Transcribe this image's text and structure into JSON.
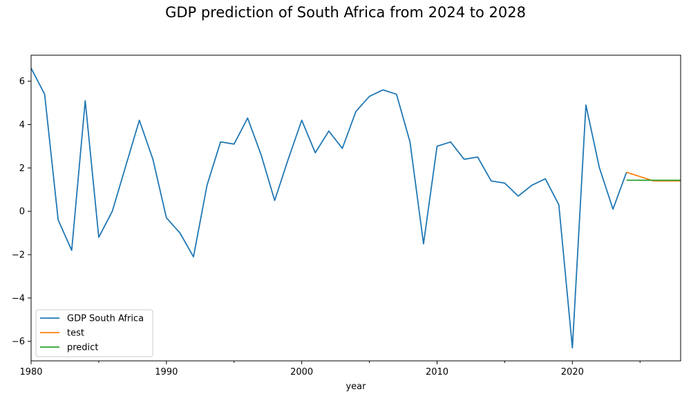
{
  "chart_data": {
    "type": "line",
    "title": "GDP prediction of South Africa from 2024 to 2028",
    "xlabel": "year",
    "ylabel": "",
    "xlim": [
      1980,
      2028
    ],
    "ylim": [
      -6.9,
      7.2
    ],
    "x_ticks": [
      1980,
      1990,
      2000,
      2010,
      2020
    ],
    "x_tick_labels": [
      "1980",
      "1990",
      "2000",
      "2010",
      "2020"
    ],
    "x_minor_ticks": [
      1985,
      1995,
      2005,
      2015,
      2025
    ],
    "y_ticks": [
      -6,
      -4,
      -2,
      0,
      2,
      4,
      6
    ],
    "y_tick_labels": [
      "−6",
      "−4",
      "−2",
      "0",
      "2",
      "4",
      "6"
    ],
    "grid": false,
    "legend_position": "lower left",
    "series": [
      {
        "name": "GDP South Africa",
        "color": "#1f77b4",
        "x": [
          1980,
          1981,
          1982,
          1983,
          1984,
          1985,
          1986,
          1987,
          1988,
          1989,
          1990,
          1991,
          1992,
          1993,
          1994,
          1995,
          1996,
          1997,
          1998,
          1999,
          2000,
          2001,
          2002,
          2003,
          2004,
          2005,
          2006,
          2007,
          2008,
          2009,
          2010,
          2011,
          2012,
          2013,
          2014,
          2015,
          2016,
          2017,
          2018,
          2019,
          2020,
          2021,
          2022,
          2023,
          2024
        ],
        "values": [
          6.6,
          5.4,
          -0.4,
          -1.8,
          5.1,
          -1.2,
          0.0,
          2.1,
          4.2,
          2.4,
          -0.3,
          -1.0,
          -2.1,
          1.2,
          3.2,
          3.1,
          4.3,
          2.6,
          0.5,
          2.4,
          4.2,
          2.7,
          3.7,
          2.9,
          4.6,
          5.3,
          5.6,
          5.4,
          3.2,
          -1.5,
          3.0,
          3.2,
          2.4,
          2.5,
          1.4,
          1.3,
          0.7,
          1.2,
          1.5,
          0.3,
          -6.3,
          4.9,
          2.0,
          0.1,
          1.8
        ]
      },
      {
        "name": "test",
        "color": "#ff7f0e",
        "x": [
          2024,
          2025,
          2026,
          2027,
          2028
        ],
        "values": [
          1.8,
          1.6,
          1.4,
          1.4,
          1.4
        ]
      },
      {
        "name": "predict",
        "color": "#2ca02c",
        "x": [
          2024,
          2025,
          2026,
          2027,
          2028
        ],
        "values": [
          1.43,
          1.43,
          1.43,
          1.43,
          1.43
        ]
      }
    ]
  }
}
